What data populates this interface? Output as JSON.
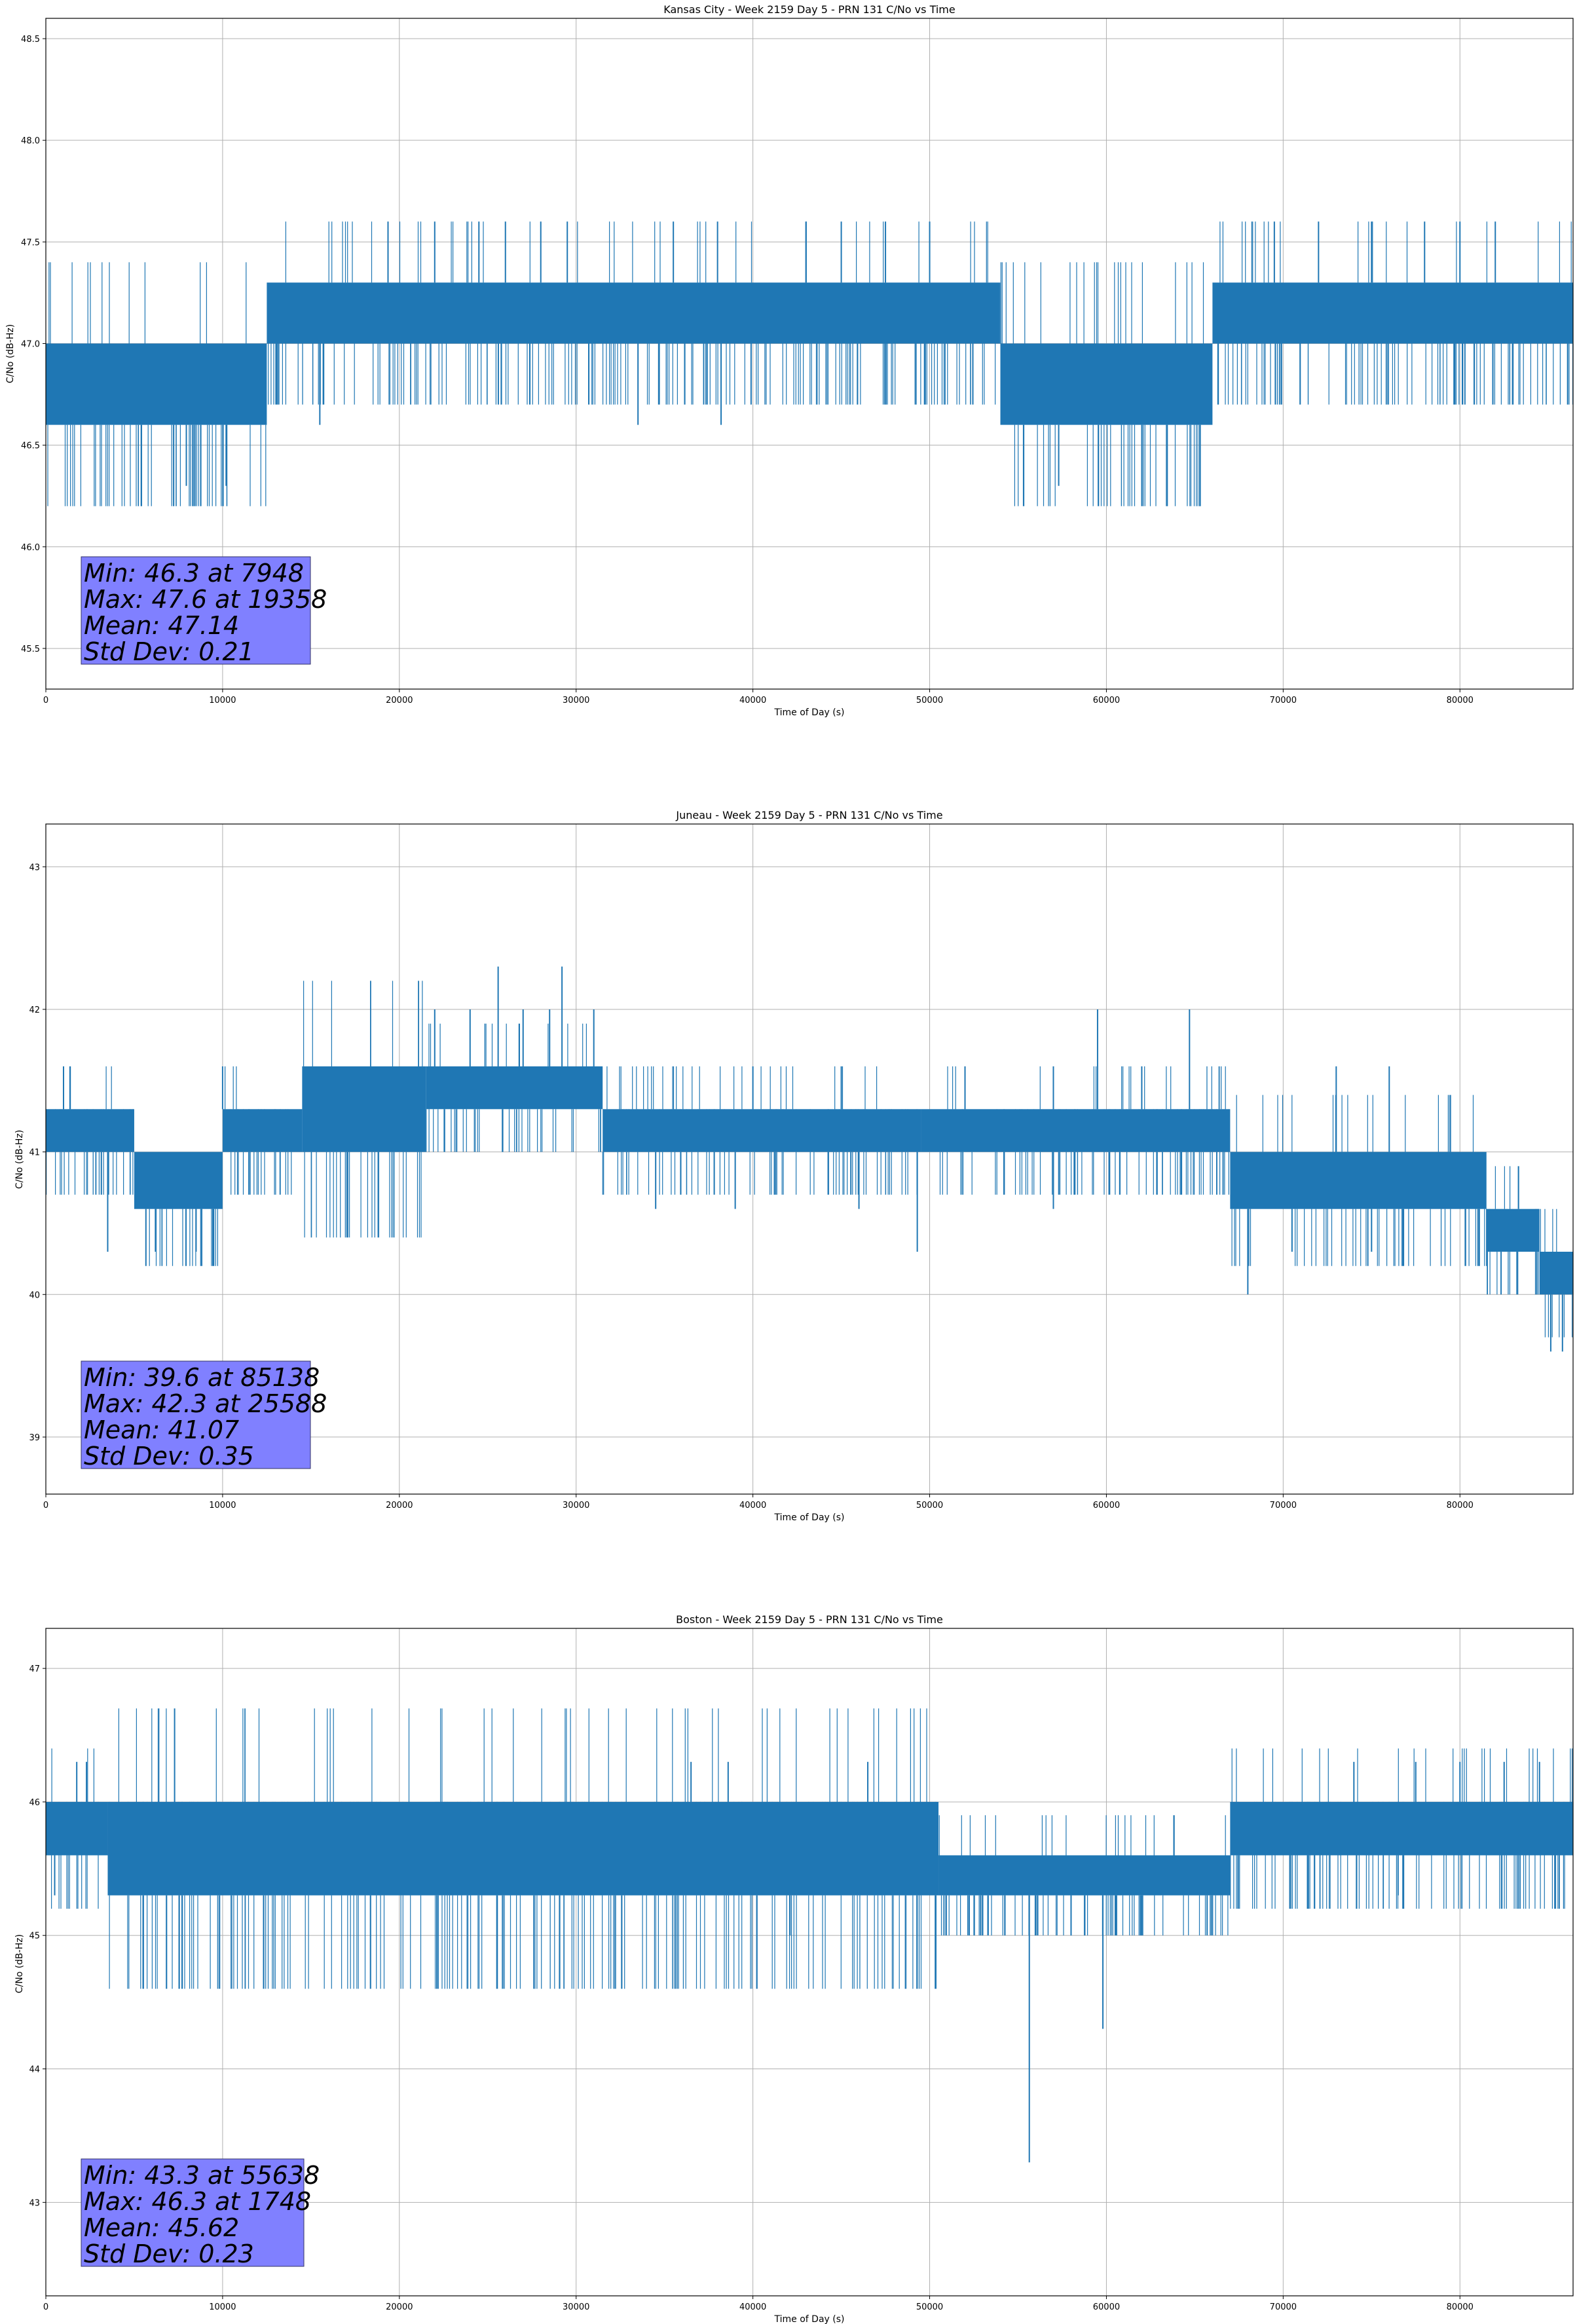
{
  "chart_data": [
    {
      "type": "line",
      "title": "Kansas City - Week 2159 Day 5 - PRN 131 C/No vs Time",
      "xlabel": "Time of Day (s)",
      "ylabel": "C/No (dB-Hz)",
      "xlim": [
        0,
        86400
      ],
      "ylim": [
        45.3,
        48.6
      ],
      "xticks": [
        "0",
        "10000",
        "20000",
        "30000",
        "40000",
        "50000",
        "60000",
        "70000",
        "80000"
      ],
      "yticks": [
        "45.5",
        "46.0",
        "46.5",
        "47.0",
        "47.5",
        "48.0",
        "48.5"
      ],
      "grid": true,
      "line_color": "#1f77b4",
      "stats_box_color": "#8080ff",
      "stats": [
        "Min: 46.3 at 7948",
        "Max: 47.6 at 19358",
        "Mean: 47.14",
        "Std Dev: 0.21"
      ],
      "segments": [
        {
          "x0": 0,
          "x1": 12500,
          "lo": 46.6,
          "hi": 47.0
        },
        {
          "x0": 12500,
          "x1": 54000,
          "lo": 47.0,
          "hi": 47.3
        },
        {
          "x0": 54000,
          "x1": 66000,
          "lo": 46.6,
          "hi": 47.0
        },
        {
          "x0": 66000,
          "x1": 86400,
          "lo": 47.0,
          "hi": 47.3
        }
      ],
      "spikes": [
        {
          "x": 7948,
          "y": 46.3
        },
        {
          "x": 10200,
          "y": 46.3
        },
        {
          "x": 57300,
          "y": 46.3
        },
        {
          "x": 19358,
          "y": 47.6
        },
        {
          "x": 22000,
          "y": 47.6
        },
        {
          "x": 24500,
          "y": 47.6
        },
        {
          "x": 26000,
          "y": 47.6
        },
        {
          "x": 28000,
          "y": 47.6
        },
        {
          "x": 29500,
          "y": 47.6
        },
        {
          "x": 35500,
          "y": 47.6
        },
        {
          "x": 38000,
          "y": 47.6
        },
        {
          "x": 43000,
          "y": 47.6
        },
        {
          "x": 45000,
          "y": 47.6
        },
        {
          "x": 47500,
          "y": 47.6
        },
        {
          "x": 50000,
          "y": 47.6
        },
        {
          "x": 69500,
          "y": 47.6
        },
        {
          "x": 72000,
          "y": 47.6
        },
        {
          "x": 75000,
          "y": 47.6
        },
        {
          "x": 78000,
          "y": 47.6
        },
        {
          "x": 80000,
          "y": 47.6
        },
        {
          "x": 82000,
          "y": 47.6
        },
        {
          "x": 15500,
          "y": 46.6
        },
        {
          "x": 33500,
          "y": 46.6
        },
        {
          "x": 38200,
          "y": 46.6
        }
      ]
    },
    {
      "type": "line",
      "title": "Juneau - Week 2159 Day 5 - PRN 131 C/No vs Time",
      "xlabel": "Time of Day (s)",
      "ylabel": "C/No (dB-Hz)",
      "xlim": [
        0,
        86400
      ],
      "ylim": [
        38.6,
        43.3
      ],
      "xticks": [
        "0",
        "10000",
        "20000",
        "30000",
        "40000",
        "50000",
        "60000",
        "70000",
        "80000"
      ],
      "yticks": [
        "39",
        "40",
        "41",
        "42",
        "43"
      ],
      "grid": true,
      "line_color": "#1f77b4",
      "stats_box_color": "#8080ff",
      "stats": [
        "Min: 39.6 at 85138",
        "Max: 42.3 at 25588",
        "Mean: 41.07",
        "Std Dev: 0.35"
      ],
      "segments": [
        {
          "x0": 0,
          "x1": 5000,
          "lo": 41.0,
          "hi": 41.3
        },
        {
          "x0": 5000,
          "x1": 10000,
          "lo": 40.6,
          "hi": 41.0
        },
        {
          "x0": 10000,
          "x1": 14500,
          "lo": 41.0,
          "hi": 41.3
        },
        {
          "x0": 14500,
          "x1": 21500,
          "lo": 41.0,
          "hi": 41.6
        },
        {
          "x0": 21500,
          "x1": 31500,
          "lo": 41.3,
          "hi": 41.6
        },
        {
          "x0": 31500,
          "x1": 49500,
          "lo": 41.0,
          "hi": 41.3
        },
        {
          "x0": 49500,
          "x1": 67000,
          "lo": 41.0,
          "hi": 41.3
        },
        {
          "x0": 67000,
          "x1": 81500,
          "lo": 40.6,
          "hi": 41.0
        },
        {
          "x0": 81500,
          "x1": 84500,
          "lo": 40.3,
          "hi": 40.6
        },
        {
          "x0": 84500,
          "x1": 86400,
          "lo": 40.0,
          "hi": 40.3
        }
      ],
      "spikes": [
        {
          "x": 85138,
          "y": 39.6
        },
        {
          "x": 85800,
          "y": 39.6
        },
        {
          "x": 3500,
          "y": 40.3
        },
        {
          "x": 6200,
          "y": 40.3
        },
        {
          "x": 8500,
          "y": 40.3
        },
        {
          "x": 49300,
          "y": 40.3
        },
        {
          "x": 68000,
          "y": 40.0
        },
        {
          "x": 70500,
          "y": 40.3
        },
        {
          "x": 75000,
          "y": 40.3
        },
        {
          "x": 25588,
          "y": 42.3
        },
        {
          "x": 29200,
          "y": 42.3
        },
        {
          "x": 22000,
          "y": 42.0
        },
        {
          "x": 24000,
          "y": 42.0
        },
        {
          "x": 27000,
          "y": 42.0
        },
        {
          "x": 28500,
          "y": 42.0
        },
        {
          "x": 31000,
          "y": 42.0
        },
        {
          "x": 59500,
          "y": 42.0
        },
        {
          "x": 64700,
          "y": 42.0
        },
        {
          "x": 1000,
          "y": 41.6
        },
        {
          "x": 10000,
          "y": 41.6
        },
        {
          "x": 40000,
          "y": 41.6
        },
        {
          "x": 45000,
          "y": 41.6
        },
        {
          "x": 52000,
          "y": 41.6
        },
        {
          "x": 57000,
          "y": 41.6
        },
        {
          "x": 62000,
          "y": 41.6
        },
        {
          "x": 73000,
          "y": 41.6
        },
        {
          "x": 76000,
          "y": 41.6
        },
        {
          "x": 34500,
          "y": 40.6
        },
        {
          "x": 39000,
          "y": 40.6
        },
        {
          "x": 46000,
          "y": 40.6
        },
        {
          "x": 57000,
          "y": 40.6
        }
      ]
    },
    {
      "type": "line",
      "title": "Boston - Week 2159 Day 5 - PRN 131 C/No vs Time",
      "xlabel": "Time of Day (s)",
      "ylabel": "C/No (dB-Hz)",
      "xlim": [
        0,
        86400
      ],
      "ylim": [
        42.3,
        47.3
      ],
      "xticks": [
        "0",
        "10000",
        "20000",
        "30000",
        "40000",
        "50000",
        "60000",
        "70000",
        "80000"
      ],
      "yticks": [
        "43",
        "44",
        "45",
        "46",
        "47"
      ],
      "grid": true,
      "line_color": "#1f77b4",
      "stats_box_color": "#8080ff",
      "stats": [
        "Min: 43.3 at 55638",
        "Max: 46.3 at 1748",
        "Mean: 45.62",
        "Std Dev: 0.23"
      ],
      "segments": [
        {
          "x0": 0,
          "x1": 3500,
          "lo": 45.6,
          "hi": 46.0
        },
        {
          "x0": 3500,
          "x1": 50500,
          "lo": 45.3,
          "hi": 46.0
        },
        {
          "x0": 50500,
          "x1": 67000,
          "lo": 45.3,
          "hi": 45.6
        },
        {
          "x0": 67000,
          "x1": 86400,
          "lo": 45.6,
          "hi": 46.0
        }
      ],
      "spikes": [
        {
          "x": 55638,
          "y": 43.3
        },
        {
          "x": 59800,
          "y": 44.3
        },
        {
          "x": 500,
          "y": 45.3
        },
        {
          "x": 42100,
          "y": 45.0
        },
        {
          "x": 53000,
          "y": 45.0
        },
        {
          "x": 56000,
          "y": 45.0
        },
        {
          "x": 58000,
          "y": 45.0
        },
        {
          "x": 60500,
          "y": 45.0
        },
        {
          "x": 62000,
          "y": 45.0
        },
        {
          "x": 66000,
          "y": 45.0
        },
        {
          "x": 1748,
          "y": 46.3
        },
        {
          "x": 2300,
          "y": 46.3
        },
        {
          "x": 36500,
          "y": 46.3
        },
        {
          "x": 38600,
          "y": 46.3
        },
        {
          "x": 46500,
          "y": 46.3
        },
        {
          "x": 74000,
          "y": 46.3
        },
        {
          "x": 77500,
          "y": 46.3
        },
        {
          "x": 80000,
          "y": 46.3
        },
        {
          "x": 82500,
          "y": 46.3
        },
        {
          "x": 84500,
          "y": 46.3
        },
        {
          "x": 76500,
          "y": 45.3
        }
      ]
    }
  ]
}
